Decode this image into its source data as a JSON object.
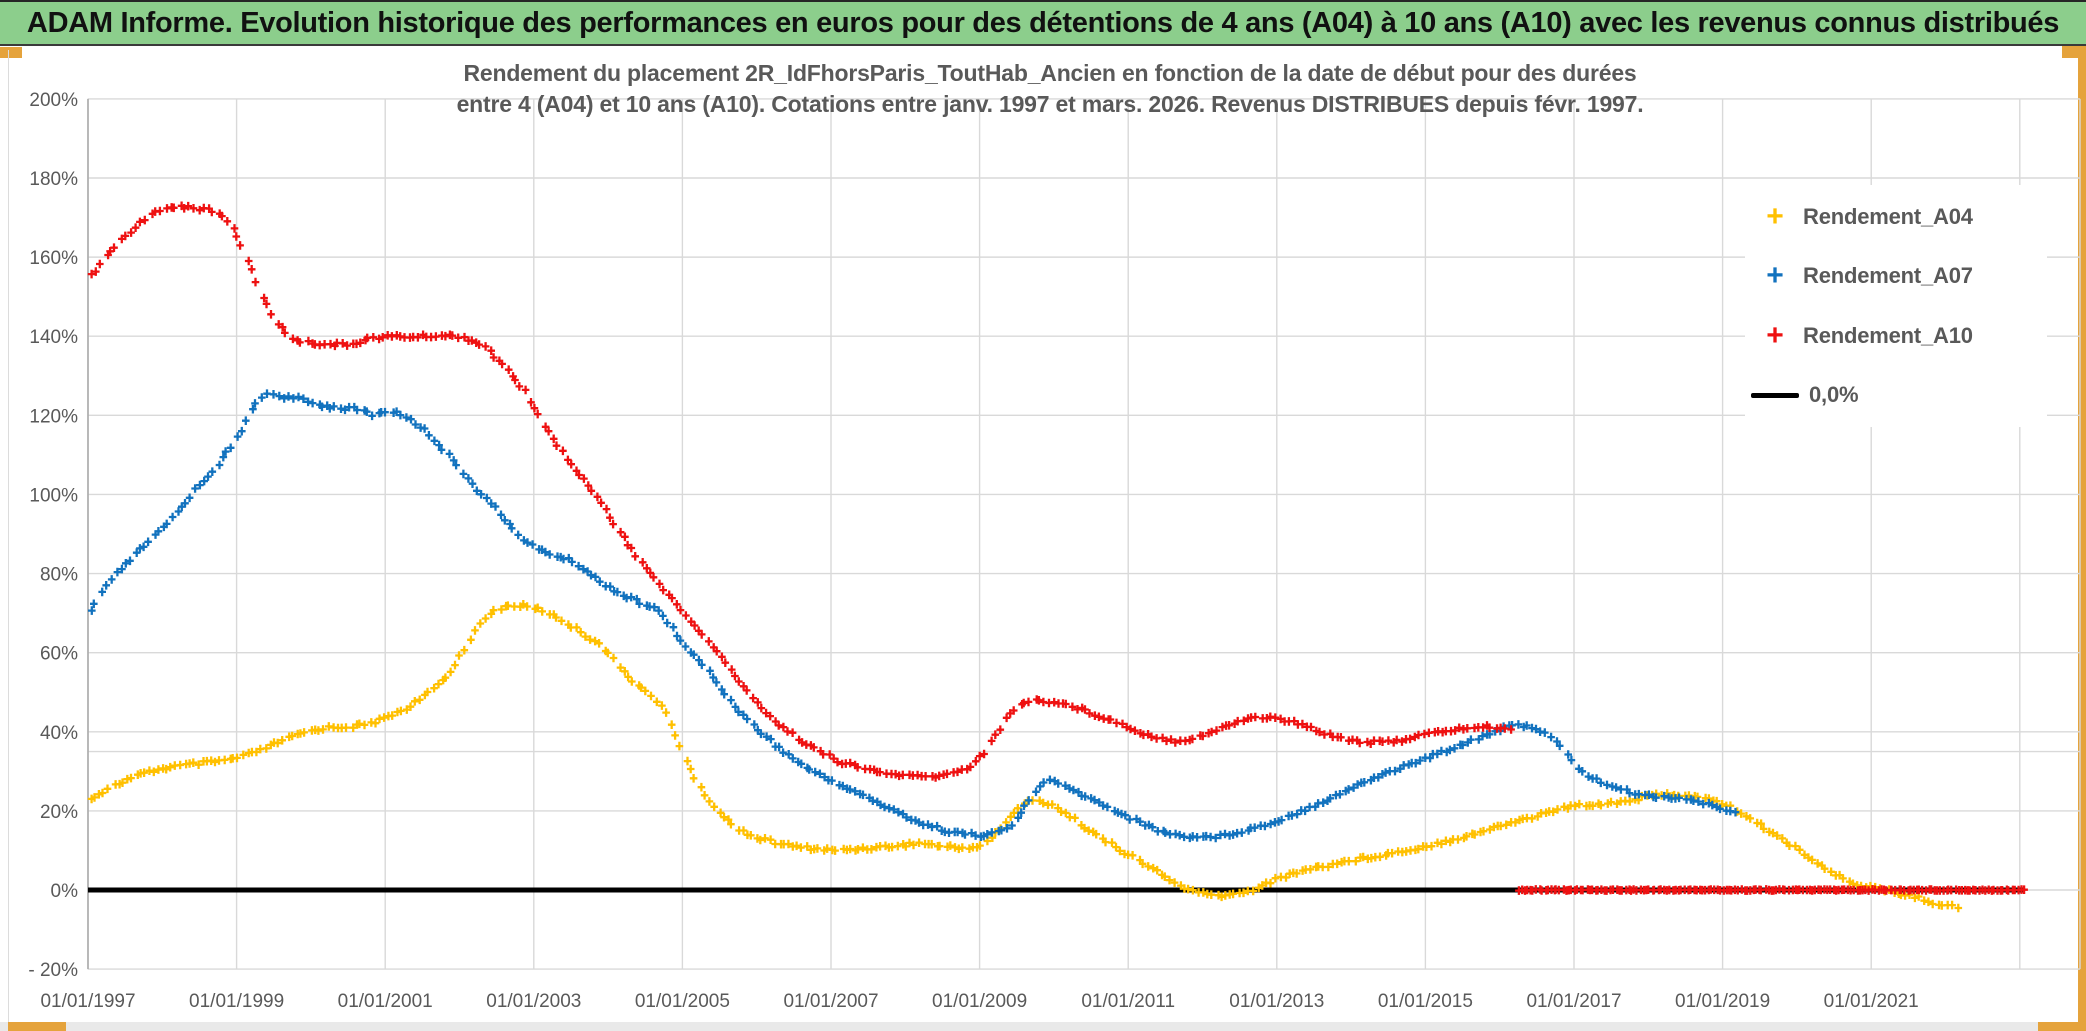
{
  "header": {
    "title": "ADAM Informe. Evolution historique des performances en euros pour des détentions de 4 ans (A04) à 10 ans (A10) avec les revenus connus distribués",
    "background_color": "#8CCE8C"
  },
  "chart": {
    "title_line1": "Rendement du placement 2R_IdFhorsParis_ToutHab_Ancien en fonction de la date de début pour des durées",
    "title_line2": "entre 4 (A04) et 10 ans (A10). Cotations entre janv. 1997 et mars. 2026. Revenus DISTRIBUES depuis févr. 1997."
  },
  "chart_data": {
    "type": "line",
    "title": "Rendement du placement 2R_IdFhorsParis_ToutHab_Ancien en fonction de la date de début pour des durées entre 4 (A04) et 10 ans (A10). Cotations entre janv. 1997 et mars. 2026. Revenus DISTRIBUES depuis févr. 1997.",
    "x_axis": {
      "min_year": 1997.0,
      "max_year": 2023.8,
      "gridline_years": [
        1997,
        1999,
        2001,
        2003,
        2005,
        2007,
        2009,
        2011,
        2013,
        2015,
        2017,
        2019,
        2021,
        2023
      ],
      "tick_years": [
        1997,
        1999,
        2001,
        2003,
        2005,
        2007,
        2009,
        2011,
        2013,
        2015,
        2017,
        2019,
        2021
      ],
      "tick_labels": [
        "01/01/1997",
        "01/01/1999",
        "01/01/2001",
        "01/01/2003",
        "01/01/2005",
        "01/01/2007",
        "01/01/2009",
        "01/01/2011",
        "01/01/2013",
        "01/01/2015",
        "01/01/2017",
        "01/01/2019",
        "01/01/2021"
      ]
    },
    "y_axis": {
      "min": -20,
      "max": 200,
      "step": 20,
      "tick_values": [
        200,
        180,
        160,
        140,
        120,
        100,
        80,
        60,
        40,
        20,
        0,
        -20
      ],
      "tick_labels": [
        "200%",
        "180%",
        "160%",
        "140%",
        "120%",
        "100%",
        "80%",
        "60%",
        "40%",
        "20%",
        "0%",
        "- 20%"
      ],
      "extra_horizontal_line_pct": 35
    },
    "legend": {
      "position": "right-top",
      "items": [
        "Rendement_A04",
        "Rendement_A07",
        "Rendement_A10",
        "0,0%"
      ]
    },
    "grid_color": "#D9D9D9",
    "axis_label_color": "#595959",
    "series": [
      {
        "name": "0,0%",
        "color": "#000000",
        "marker": "line",
        "points": [
          [
            1997.0,
            0
          ],
          [
            2023.05,
            0
          ]
        ]
      },
      {
        "name": "Rendement_A04",
        "color": "#FFC000",
        "marker": "plus",
        "points": [
          [
            1997.04,
            23
          ],
          [
            1997.3,
            26
          ],
          [
            1997.6,
            28.5
          ],
          [
            1997.9,
            30.3
          ],
          [
            1998.2,
            31.3
          ],
          [
            1998.5,
            32
          ],
          [
            1998.8,
            32.6
          ],
          [
            1999.05,
            33.5
          ],
          [
            1999.35,
            35.5
          ],
          [
            1999.65,
            38
          ],
          [
            1999.95,
            40
          ],
          [
            2000.2,
            41
          ],
          [
            2000.5,
            41.3
          ],
          [
            2000.75,
            41.8
          ],
          [
            2001,
            43.5
          ],
          [
            2001.3,
            46
          ],
          [
            2001.6,
            50
          ],
          [
            2001.9,
            55.5
          ],
          [
            2002.1,
            62
          ],
          [
            2002.3,
            68
          ],
          [
            2002.5,
            71
          ],
          [
            2002.7,
            72
          ],
          [
            2002.95,
            71.7
          ],
          [
            2003.15,
            70.5
          ],
          [
            2003.4,
            68
          ],
          [
            2003.65,
            65
          ],
          [
            2003.9,
            62
          ],
          [
            2004.1,
            57.5
          ],
          [
            2004.35,
            52.5
          ],
          [
            2004.6,
            49
          ],
          [
            2004.8,
            44
          ],
          [
            2005,
            35
          ],
          [
            2005.2,
            27
          ],
          [
            2005.45,
            20.5
          ],
          [
            2005.7,
            16
          ],
          [
            2005.95,
            13.5
          ],
          [
            2006.2,
            12.2
          ],
          [
            2006.5,
            11
          ],
          [
            2006.85,
            10.3
          ],
          [
            2007.1,
            10
          ],
          [
            2007.5,
            10.6
          ],
          [
            2007.9,
            11.2
          ],
          [
            2008.2,
            11.9
          ],
          [
            2008.5,
            11
          ],
          [
            2008.8,
            10.6
          ],
          [
            2009.05,
            11.2
          ],
          [
            2009.3,
            16
          ],
          [
            2009.55,
            21.5
          ],
          [
            2009.75,
            22.7
          ],
          [
            2010,
            21.5
          ],
          [
            2010.3,
            17.5
          ],
          [
            2010.6,
            13.5
          ],
          [
            2010.9,
            10
          ],
          [
            2011.1,
            8
          ],
          [
            2011.4,
            4.5
          ],
          [
            2011.65,
            1.5
          ],
          [
            2011.9,
            -0.5
          ],
          [
            2012.15,
            -1.5
          ],
          [
            2012.45,
            -1.2
          ],
          [
            2012.7,
            0.3
          ],
          [
            2013,
            2.8
          ],
          [
            2013.35,
            5
          ],
          [
            2013.7,
            6.3
          ],
          [
            2014,
            7.5
          ],
          [
            2014.4,
            8.8
          ],
          [
            2014.8,
            10.2
          ],
          [
            2015.1,
            11.5
          ],
          [
            2015.45,
            13.2
          ],
          [
            2015.8,
            15
          ],
          [
            2016.1,
            16.8
          ],
          [
            2016.45,
            18.5
          ],
          [
            2016.8,
            20.5
          ],
          [
            2017.1,
            21.5
          ],
          [
            2017.4,
            21.8
          ],
          [
            2017.7,
            22.5
          ],
          [
            2018,
            23.6
          ],
          [
            2018.2,
            24.3
          ],
          [
            2018.45,
            24
          ],
          [
            2018.7,
            23.2
          ],
          [
            2018.95,
            22.4
          ],
          [
            2019.15,
            20.7
          ],
          [
            2019.4,
            17.7
          ],
          [
            2019.75,
            13.4
          ],
          [
            2020.05,
            10
          ],
          [
            2020.4,
            5
          ],
          [
            2020.65,
            2.5
          ],
          [
            2020.95,
            0.8
          ],
          [
            2021.25,
            -0.4
          ],
          [
            2021.6,
            -1.7
          ],
          [
            2021.85,
            -3.3
          ],
          [
            2022.05,
            -4
          ],
          [
            2022.2,
            -4.5
          ]
        ]
      },
      {
        "name": "Rendement_A07",
        "color": "#1272BE",
        "marker": "plus",
        "points": [
          [
            1997.04,
            70.5
          ],
          [
            1997.15,
            74
          ],
          [
            1997.35,
            79
          ],
          [
            1997.6,
            84
          ],
          [
            1997.85,
            88.5
          ],
          [
            1998.1,
            93
          ],
          [
            1998.4,
            100
          ],
          [
            1998.7,
            106.5
          ],
          [
            1998.95,
            112.5
          ],
          [
            1999.15,
            119.5
          ],
          [
            1999.3,
            124.3
          ],
          [
            1999.45,
            125.7
          ],
          [
            1999.6,
            124.8
          ],
          [
            1999.85,
            124.2
          ],
          [
            2000.05,
            122.8
          ],
          [
            2000.35,
            122
          ],
          [
            2000.65,
            121.5
          ],
          [
            2000.85,
            120
          ],
          [
            2001.05,
            121.3
          ],
          [
            2001.3,
            119.5
          ],
          [
            2001.55,
            116
          ],
          [
            2001.8,
            111
          ],
          [
            2002,
            107
          ],
          [
            2002.25,
            100.5
          ],
          [
            2002.5,
            96.5
          ],
          [
            2002.75,
            90.5
          ],
          [
            2003,
            86.5
          ],
          [
            2003.25,
            84.8
          ],
          [
            2003.55,
            83
          ],
          [
            2003.85,
            78.5
          ],
          [
            2004.15,
            75
          ],
          [
            2004.45,
            72.5
          ],
          [
            2004.7,
            70.5
          ],
          [
            2005,
            62.5
          ],
          [
            2005.3,
            56.5
          ],
          [
            2005.6,
            49
          ],
          [
            2005.9,
            42.5
          ],
          [
            2006.2,
            37.5
          ],
          [
            2006.5,
            33
          ],
          [
            2006.8,
            29.5
          ],
          [
            2007.05,
            27.3
          ],
          [
            2007.45,
            23.7
          ],
          [
            2007.8,
            20.5
          ],
          [
            2008.2,
            17
          ],
          [
            2008.6,
            14.7
          ],
          [
            2008.95,
            13.8
          ],
          [
            2009.2,
            14.2
          ],
          [
            2009.45,
            16.5
          ],
          [
            2009.7,
            23.5
          ],
          [
            2009.9,
            28.3
          ],
          [
            2010.1,
            26.5
          ],
          [
            2010.45,
            23.5
          ],
          [
            2010.75,
            20.8
          ],
          [
            2011.05,
            18
          ],
          [
            2011.35,
            15.5
          ],
          [
            2011.65,
            13.8
          ],
          [
            2011.95,
            13.4
          ],
          [
            2012.25,
            13.6
          ],
          [
            2012.55,
            15
          ],
          [
            2012.85,
            16.5
          ],
          [
            2013.1,
            18.2
          ],
          [
            2013.45,
            21
          ],
          [
            2013.8,
            24
          ],
          [
            2014.2,
            27.5
          ],
          [
            2014.6,
            30.5
          ],
          [
            2015,
            33.2
          ],
          [
            2015.35,
            35.8
          ],
          [
            2015.65,
            38
          ],
          [
            2015.95,
            40.3
          ],
          [
            2016.2,
            41.6
          ],
          [
            2016.45,
            41.3
          ],
          [
            2016.65,
            39.5
          ],
          [
            2016.85,
            35.5
          ],
          [
            2017,
            31.5
          ],
          [
            2017.15,
            29.5
          ],
          [
            2017.4,
            27
          ],
          [
            2017.65,
            25.3
          ],
          [
            2017.9,
            24
          ],
          [
            2018.15,
            23.6
          ],
          [
            2018.45,
            23.3
          ],
          [
            2018.75,
            21.8
          ],
          [
            2019,
            20.7
          ],
          [
            2019.2,
            19.8
          ]
        ]
      },
      {
        "name": "Rendement_A10",
        "color": "#EE1111",
        "marker": "plus",
        "points": [
          [
            1997.04,
            155.5
          ],
          [
            1997.2,
            159
          ],
          [
            1997.4,
            163.5
          ],
          [
            1997.6,
            167
          ],
          [
            1997.8,
            170
          ],
          [
            1998,
            172
          ],
          [
            1998.2,
            173
          ],
          [
            1998.45,
            172.5
          ],
          [
            1998.7,
            171.5
          ],
          [
            1998.9,
            169
          ],
          [
            1999.1,
            162
          ],
          [
            1999.3,
            152
          ],
          [
            1999.5,
            144.5
          ],
          [
            1999.7,
            140
          ],
          [
            1999.9,
            138.5
          ],
          [
            2000.2,
            138
          ],
          [
            2000.5,
            137.8
          ],
          [
            2000.8,
            139.5
          ],
          [
            2001.1,
            140
          ],
          [
            2001.4,
            139.8
          ],
          [
            2001.7,
            140.2
          ],
          [
            2002,
            140
          ],
          [
            2002.3,
            138
          ],
          [
            2002.6,
            132.5
          ],
          [
            2002.9,
            125.5
          ],
          [
            2003.1,
            119
          ],
          [
            2003.4,
            110
          ],
          [
            2003.8,
            101
          ],
          [
            2004.1,
            92
          ],
          [
            2004.4,
            84
          ],
          [
            2004.7,
            77
          ],
          [
            2005,
            70.5
          ],
          [
            2005.3,
            64
          ],
          [
            2005.6,
            57
          ],
          [
            2005.9,
            49.5
          ],
          [
            2006.2,
            43.5
          ],
          [
            2006.5,
            39
          ],
          [
            2006.8,
            35.5
          ],
          [
            2007.1,
            32.5
          ],
          [
            2007.4,
            31
          ],
          [
            2007.7,
            29.5
          ],
          [
            2008,
            29
          ],
          [
            2008.3,
            28.5
          ],
          [
            2008.6,
            29.2
          ],
          [
            2008.9,
            31.5
          ],
          [
            2009.1,
            35.5
          ],
          [
            2009.3,
            42
          ],
          [
            2009.5,
            46.5
          ],
          [
            2009.7,
            48
          ],
          [
            2009.95,
            47.6
          ],
          [
            2010.2,
            46.8
          ],
          [
            2010.5,
            44.8
          ],
          [
            2010.8,
            42.8
          ],
          [
            2011.1,
            40.2
          ],
          [
            2011.4,
            38.5
          ],
          [
            2011.65,
            37.6
          ],
          [
            2011.9,
            38.5
          ],
          [
            2012.2,
            40.5
          ],
          [
            2012.5,
            42.8
          ],
          [
            2012.75,
            43.8
          ],
          [
            2013,
            43.4
          ],
          [
            2013.3,
            42
          ],
          [
            2013.6,
            40
          ],
          [
            2013.9,
            38.3
          ],
          [
            2014.15,
            37.4
          ],
          [
            2014.45,
            37.3
          ],
          [
            2014.7,
            38
          ],
          [
            2015,
            39.3
          ],
          [
            2015.3,
            40.3
          ],
          [
            2015.6,
            41
          ],
          [
            2015.9,
            41.3
          ],
          [
            2016.1,
            40.6
          ],
          [
            2016.18,
            40.2
          ]
        ],
        "zero_segment": {
          "from": 2016.25,
          "to": 2023.05,
          "value": 0
        }
      }
    ]
  }
}
